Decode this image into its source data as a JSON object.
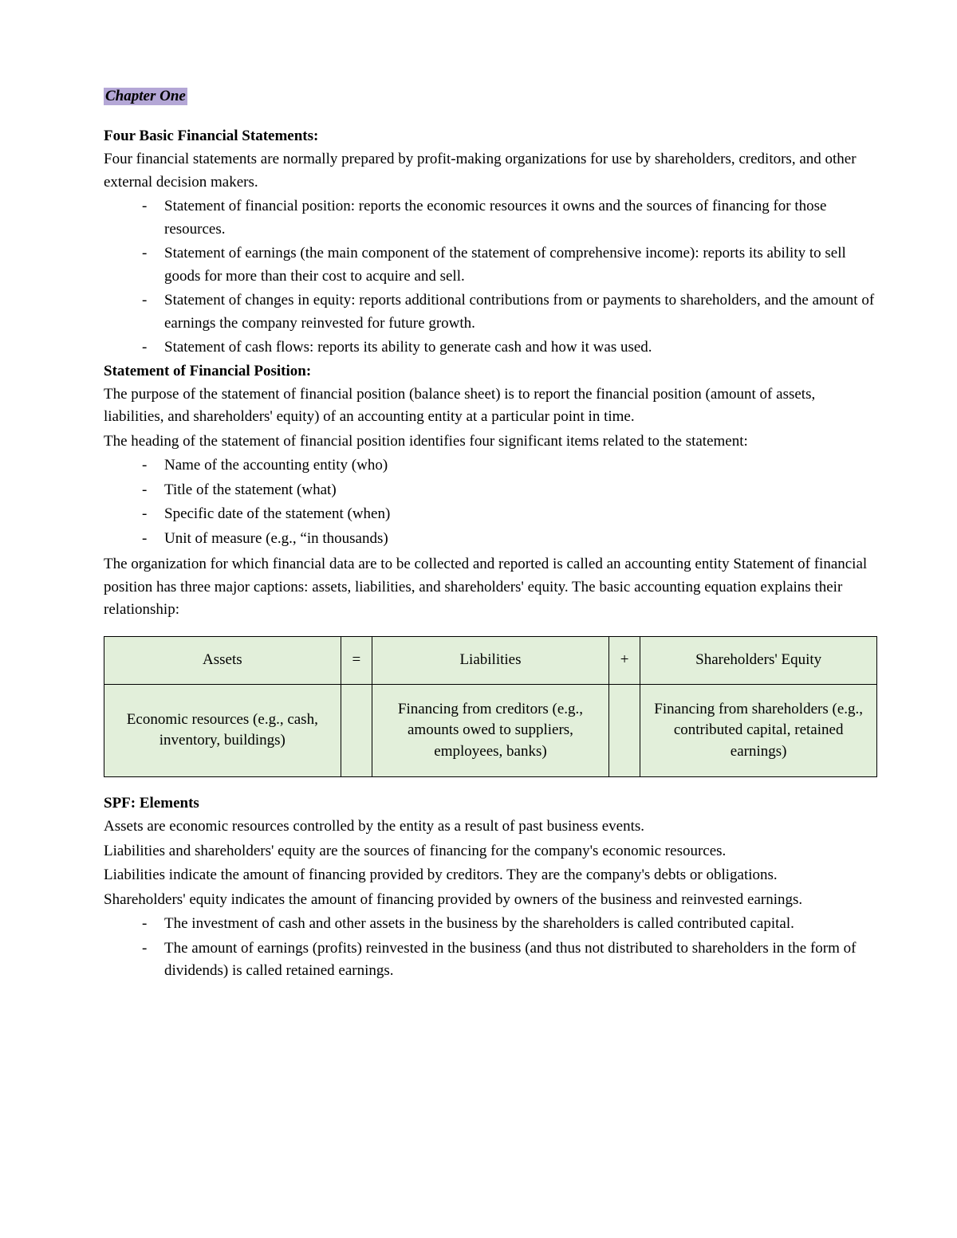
{
  "chapter_label": "Chapter One",
  "section1": {
    "heading": "Four Basic Financial Statements:",
    "intro": "Four financial statements are normally prepared by profit-making organizations for use by shareholders, creditors, and other external decision makers.",
    "bullets": [
      "Statement of financial position: reports the economic resources it owns and the sources of financing for those resources.",
      "Statement of earnings (the main component of the statement of comprehensive income): reports its ability to sell goods for more than their cost to acquire and sell.",
      "Statement of changes in equity: reports additional contributions from or payments to shareholders, and the amount of earnings the company reinvested for future growth.",
      "Statement of cash flows: reports its ability to generate cash and how it was used."
    ]
  },
  "section2": {
    "heading": "Statement of Financial Position:",
    "p1": "The purpose of the statement of financial position (balance sheet) is to report the financial position (amount of assets, liabilities, and shareholders' equity) of an accounting entity at a particular point in time.",
    "p2": "The heading of the statement of financial position identifies four significant items related to the statement:",
    "bullets": [
      "Name of the accounting entity (who)",
      "Title of the statement (what)",
      "Specific date of the statement (when)",
      "Unit of measure (e.g., “in thousands)"
    ],
    "p3": "The organization for which financial data are to be collected and reported is called an accounting entity Statement of financial position has three major captions: assets, liabilities, and shareholders' equity. The basic accounting equation explains their relationship:"
  },
  "equation_table": {
    "background_color": "#e2efda",
    "border_color": "#000000",
    "columns": [
      "wide",
      "op",
      "wide",
      "op",
      "wide"
    ],
    "rows": [
      [
        "Assets",
        "=",
        "Liabilities",
        "+",
        "Shareholders' Equity"
      ],
      [
        "Economic resources (e.g., cash, inventory, buildings)",
        "",
        "Financing from creditors (e.g., amounts owed to suppliers, employees, banks)",
        "",
        "Financing from shareholders (e.g., contributed capital, retained earnings)"
      ]
    ]
  },
  "section3": {
    "heading": "SPF: Elements",
    "p1": "Assets are economic resources controlled by the entity as a result of past business events.",
    "p2": "Liabilities and shareholders' equity are the sources of financing for the company's economic resources.",
    "p3": "Liabilities indicate the amount of financing provided by creditors. They are the company's debts or obligations.",
    "p4": "Shareholders' equity indicates the amount of financing provided by owners of the business and reinvested earnings.",
    "bullets": [
      "The investment of cash and other assets in the business by the shareholders is called contributed capital.",
      "The amount of earnings (profits) reinvested in the business (and thus not distributed to shareholders in the form of dividends) is called retained earnings."
    ]
  }
}
